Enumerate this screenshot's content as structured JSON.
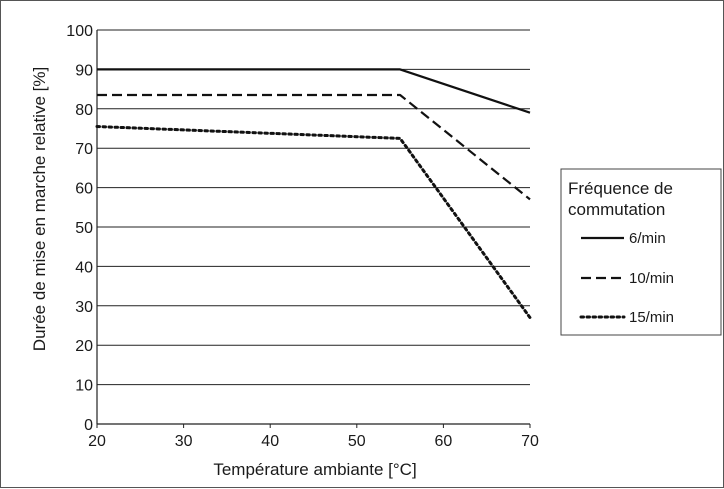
{
  "chart_data": {
    "type": "line",
    "xlabel": "Température ambiante [°C]",
    "ylabel": "Durée de mise en marche relative [%]",
    "xlim": [
      20,
      70
    ],
    "ylim": [
      0,
      100
    ],
    "x_ticks": [
      "20",
      "30",
      "40",
      "50",
      "60",
      "70"
    ],
    "y_ticks": [
      "0",
      "10",
      "20",
      "30",
      "40",
      "50",
      "60",
      "70",
      "80",
      "90",
      "100"
    ],
    "grid": "horizontal",
    "legend": {
      "title_line1": "Fréquence de",
      "title_line2": "commutation",
      "placement": "right"
    },
    "series": [
      {
        "name": "6/min",
        "style": "solid",
        "x": [
          20,
          55,
          70
        ],
        "y": [
          90,
          90,
          79
        ]
      },
      {
        "name": "10/min",
        "style": "dashed",
        "x": [
          20,
          55,
          70
        ],
        "y": [
          83.5,
          83.5,
          57
        ]
      },
      {
        "name": "15/min",
        "style": "dotted",
        "x": [
          20,
          55,
          70
        ],
        "y": [
          75.5,
          72.5,
          27
        ]
      }
    ]
  }
}
